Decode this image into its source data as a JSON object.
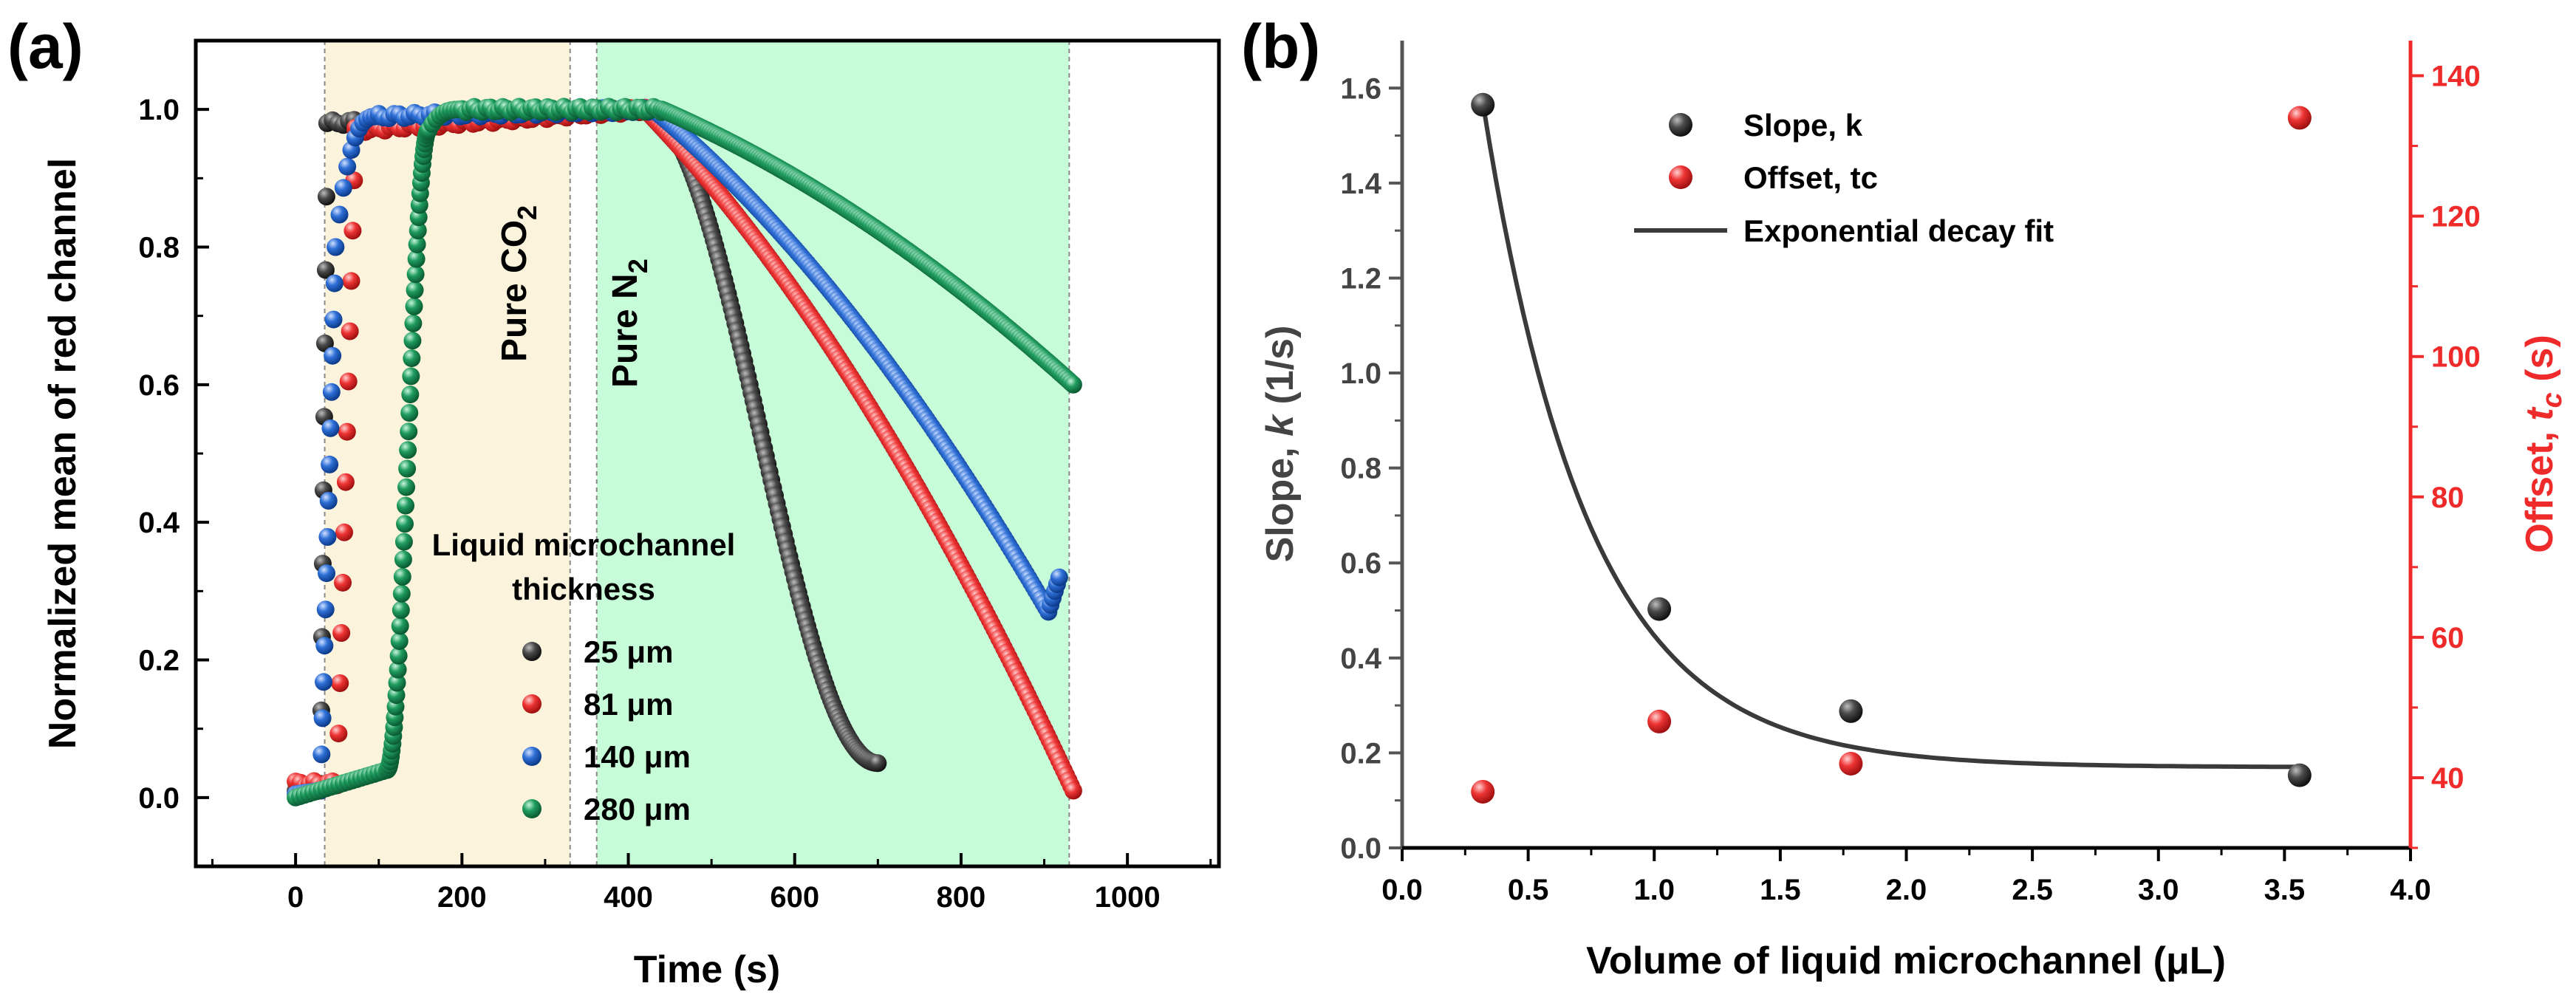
{
  "chart_data": [
    {
      "panel_label": "(a)",
      "type": "scatter",
      "xlabel": "Time (s)",
      "ylabel": "Normalized mean of red channel",
      "xlim": [
        -120,
        1110
      ],
      "ylim": [
        -0.1,
        1.1
      ],
      "x_ticks": [
        "0",
        "200",
        "400",
        "600",
        "800",
        "1000"
      ],
      "x_tick_values": [
        0,
        200,
        400,
        600,
        800,
        1000
      ],
      "y_ticks": [
        "0.0",
        "0.2",
        "0.4",
        "0.6",
        "0.8",
        "1.0"
      ],
      "y_tick_values": [
        0,
        0.2,
        0.4,
        0.6,
        0.8,
        1.0
      ],
      "shaded_regions": [
        {
          "label": "Pure CO",
          "subscript": "2",
          "x0": 35,
          "x1": 330,
          "color": "#fbf3dc"
        },
        {
          "label": "Pure N",
          "subscript": "2",
          "x0": 362,
          "x1": 930,
          "color": "#c6fcd8"
        }
      ],
      "legend_title_line1": "Liquid microchannel",
      "legend_title_line2": "thickness",
      "series": [
        {
          "name": "25",
          "unit": "μm",
          "color": "#4a4a4a",
          "segments": [
            {
              "x0": 0,
              "x1": 30,
              "y0": 0.01,
              "y1": 0.02,
              "shape": "lin",
              "n": 8
            },
            {
              "x0": 30,
              "x1": 38,
              "y0": 0.02,
              "y1": 0.98,
              "shape": "lin",
              "n": 10
            },
            {
              "x0": 38,
              "x1": 420,
              "y0": 0.98,
              "y1": 1.0,
              "shape": "flat",
              "n": 60
            },
            {
              "x0": 420,
              "x1": 700,
              "y0": 1.0,
              "y1": 0.05,
              "shape": "sig",
              "n": 130
            }
          ]
        },
        {
          "name": "81",
          "unit": "μm",
          "color": "#ee3434",
          "segments": [
            {
              "x0": 0,
              "x1": 50,
              "y0": 0.02,
              "y1": 0.02,
              "shape": "flat",
              "n": 10
            },
            {
              "x0": 50,
              "x1": 72,
              "y0": 0.02,
              "y1": 0.97,
              "shape": "lin",
              "n": 14
            },
            {
              "x0": 72,
              "x1": 420,
              "y0": 0.97,
              "y1": 1.0,
              "shape": "flat",
              "n": 60
            },
            {
              "x0": 420,
              "x1": 935,
              "y0": 1.0,
              "y1": 0.01,
              "shape": "conc",
              "n": 180
            }
          ]
        },
        {
          "name": "140",
          "unit": "μm",
          "color": "#2e6fd6",
          "segments": [
            {
              "x0": 0,
              "x1": 30,
              "y0": 0.005,
              "y1": 0.01,
              "shape": "lin",
              "n": 8
            },
            {
              "x0": 30,
              "x1": 48,
              "y0": 0.01,
              "y1": 0.8,
              "shape": "lin",
              "n": 16
            },
            {
              "x0": 48,
              "x1": 100,
              "y0": 0.8,
              "y1": 0.99,
              "shape": "sat",
              "n": 12
            },
            {
              "x0": 100,
              "x1": 430,
              "y0": 0.99,
              "y1": 1.0,
              "shape": "flat",
              "n": 55
            },
            {
              "x0": 430,
              "x1": 905,
              "y0": 1.0,
              "y1": 0.27,
              "shape": "conc",
              "n": 160
            },
            {
              "x0": 905,
              "x1": 918,
              "y0": 0.27,
              "y1": 0.32,
              "shape": "lin",
              "n": 6
            }
          ]
        },
        {
          "name": "280",
          "unit": "μm",
          "color": "#1f9c5e",
          "segments": [
            {
              "x0": 0,
              "x1": 110,
              "y0": 0.0,
              "y1": 0.04,
              "shape": "lin",
              "n": 22
            },
            {
              "x0": 110,
              "x1": 160,
              "y0": 0.04,
              "y1": 0.97,
              "shape": "sig",
              "n": 55
            },
            {
              "x0": 160,
              "x1": 200,
              "y0": 0.97,
              "y1": 1.0,
              "shape": "sat",
              "n": 10
            },
            {
              "x0": 200,
              "x1": 440,
              "y0": 1.0,
              "y1": 1.0,
              "shape": "flat",
              "n": 50
            },
            {
              "x0": 440,
              "x1": 935,
              "y0": 1.0,
              "y1": 0.6,
              "shape": "conc",
              "n": 170
            }
          ]
        }
      ]
    },
    {
      "panel_label": "(b)",
      "type": "scatter",
      "xlabel": "Volume of liquid microchannel (μL)",
      "ylabel_left": "Slope, k (1/s)",
      "ylabel_left_parts": [
        "Slope, ",
        "k",
        " (1/s)"
      ],
      "ylabel_right": "Offset, tc (s)",
      "ylabel_right_parts": [
        "Offset, ",
        "t",
        "c",
        " (s)"
      ],
      "xlim": [
        0,
        4.0
      ],
      "ylim_left": [
        0,
        1.7
      ],
      "ylim_right": [
        30,
        145
      ],
      "x_ticks": [
        "0.0",
        "0.5",
        "1.0",
        "1.5",
        "2.0",
        "2.5",
        "3.0",
        "3.5",
        "4.0"
      ],
      "x_tick_values": [
        0,
        0.5,
        1.0,
        1.5,
        2.0,
        2.5,
        3.0,
        3.5,
        4.0
      ],
      "y_left_ticks": [
        "0.0",
        "0.2",
        "0.4",
        "0.6",
        "0.8",
        "1.0",
        "1.2",
        "1.4",
        "1.6"
      ],
      "y_left_tick_values": [
        0,
        0.2,
        0.4,
        0.6,
        0.8,
        1.0,
        1.2,
        1.4,
        1.6
      ],
      "y_right_ticks": [
        "40",
        "60",
        "80",
        "100",
        "120",
        "140"
      ],
      "y_right_tick_values": [
        40,
        60,
        80,
        100,
        120,
        140
      ],
      "left_axis_color": "#555555",
      "right_axis_color": "#ee2a2a",
      "legend": [
        "Slope, k",
        "Offset, tc",
        "Exponential decay fit"
      ],
      "slope_k": {
        "x": [
          0.32,
          1.02,
          1.78,
          3.56
        ],
        "y": [
          1.565,
          0.503,
          0.288,
          0.153
        ]
      },
      "offset_tc": {
        "x": [
          0.32,
          1.02,
          1.78,
          3.56
        ],
        "y": [
          38,
          48,
          42,
          134
        ]
      },
      "fit": {
        "type": "exponential decay",
        "y0": 0.17,
        "A": 1.4,
        "x_start": 0.32,
        "tau": 0.42,
        "x_range": [
          0.32,
          3.56
        ]
      }
    }
  ]
}
